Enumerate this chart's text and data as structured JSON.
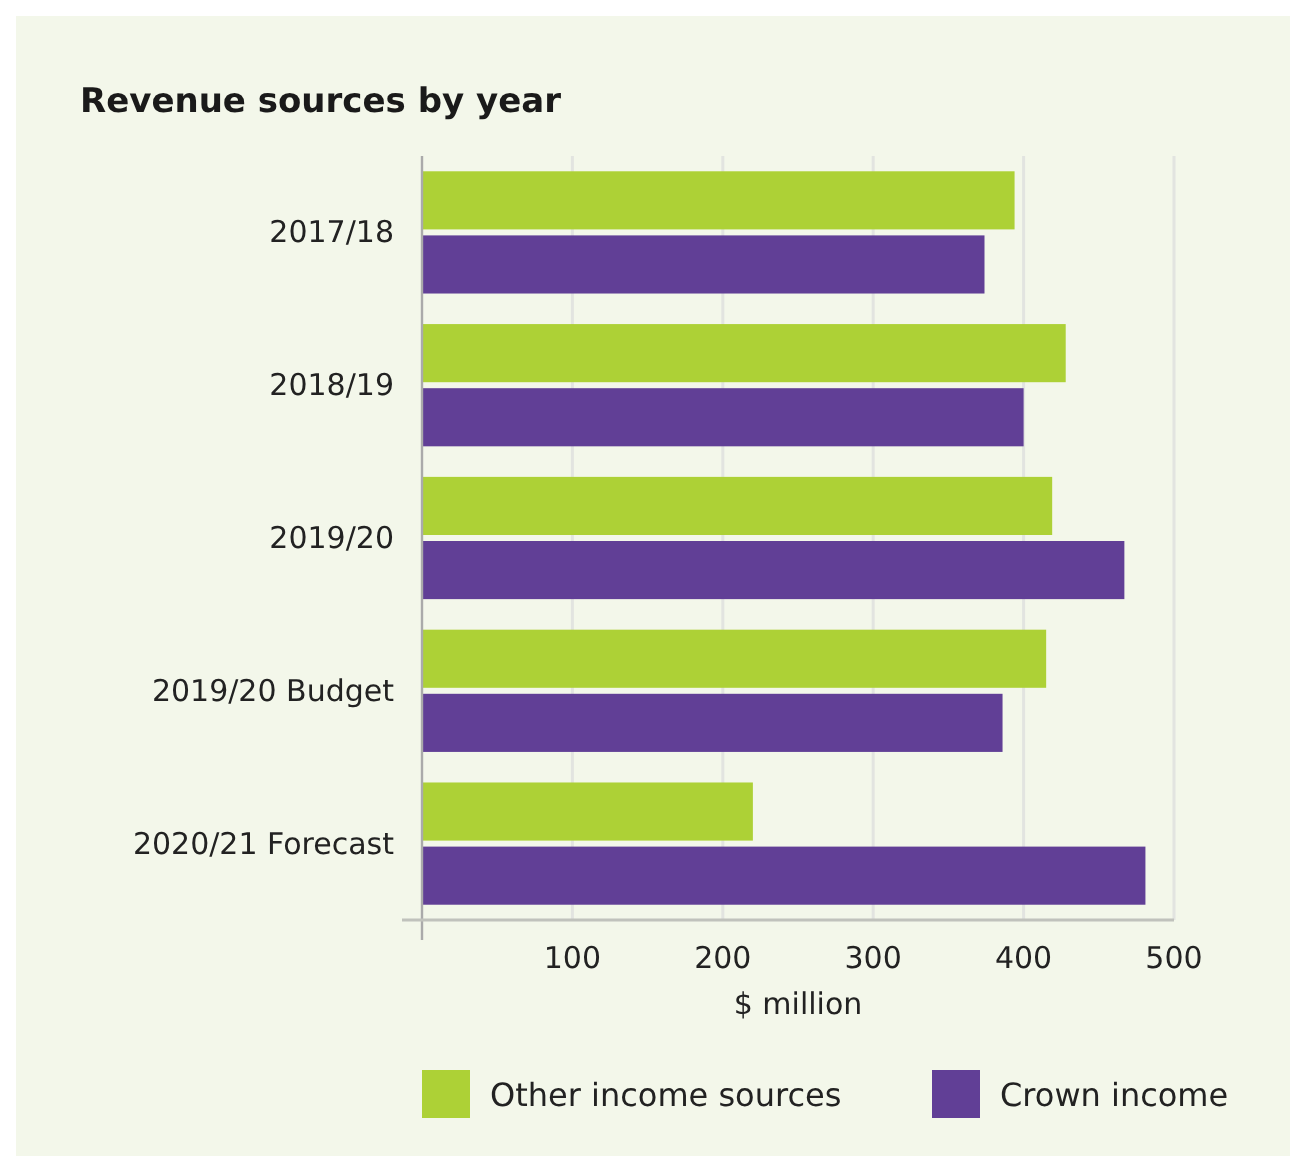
{
  "chart_data": {
    "type": "bar",
    "orientation": "horizontal",
    "title": "Revenue sources by year",
    "xlabel": "$ million",
    "categories": [
      "2017/18",
      "2018/19",
      "2019/20",
      "2019/20 Budget",
      "2020/21 Forecast"
    ],
    "series": [
      {
        "name": "Other income sources",
        "color": "#add136",
        "values": [
          394,
          428,
          419,
          415,
          220
        ]
      },
      {
        "name": "Crown income",
        "color": "#613f96",
        "values": [
          374,
          400,
          467,
          386,
          481
        ]
      }
    ],
    "xlim": [
      0,
      500
    ],
    "xticks": [
      100,
      200,
      300,
      400,
      500
    ],
    "grid": "x",
    "legend": "bottom"
  }
}
